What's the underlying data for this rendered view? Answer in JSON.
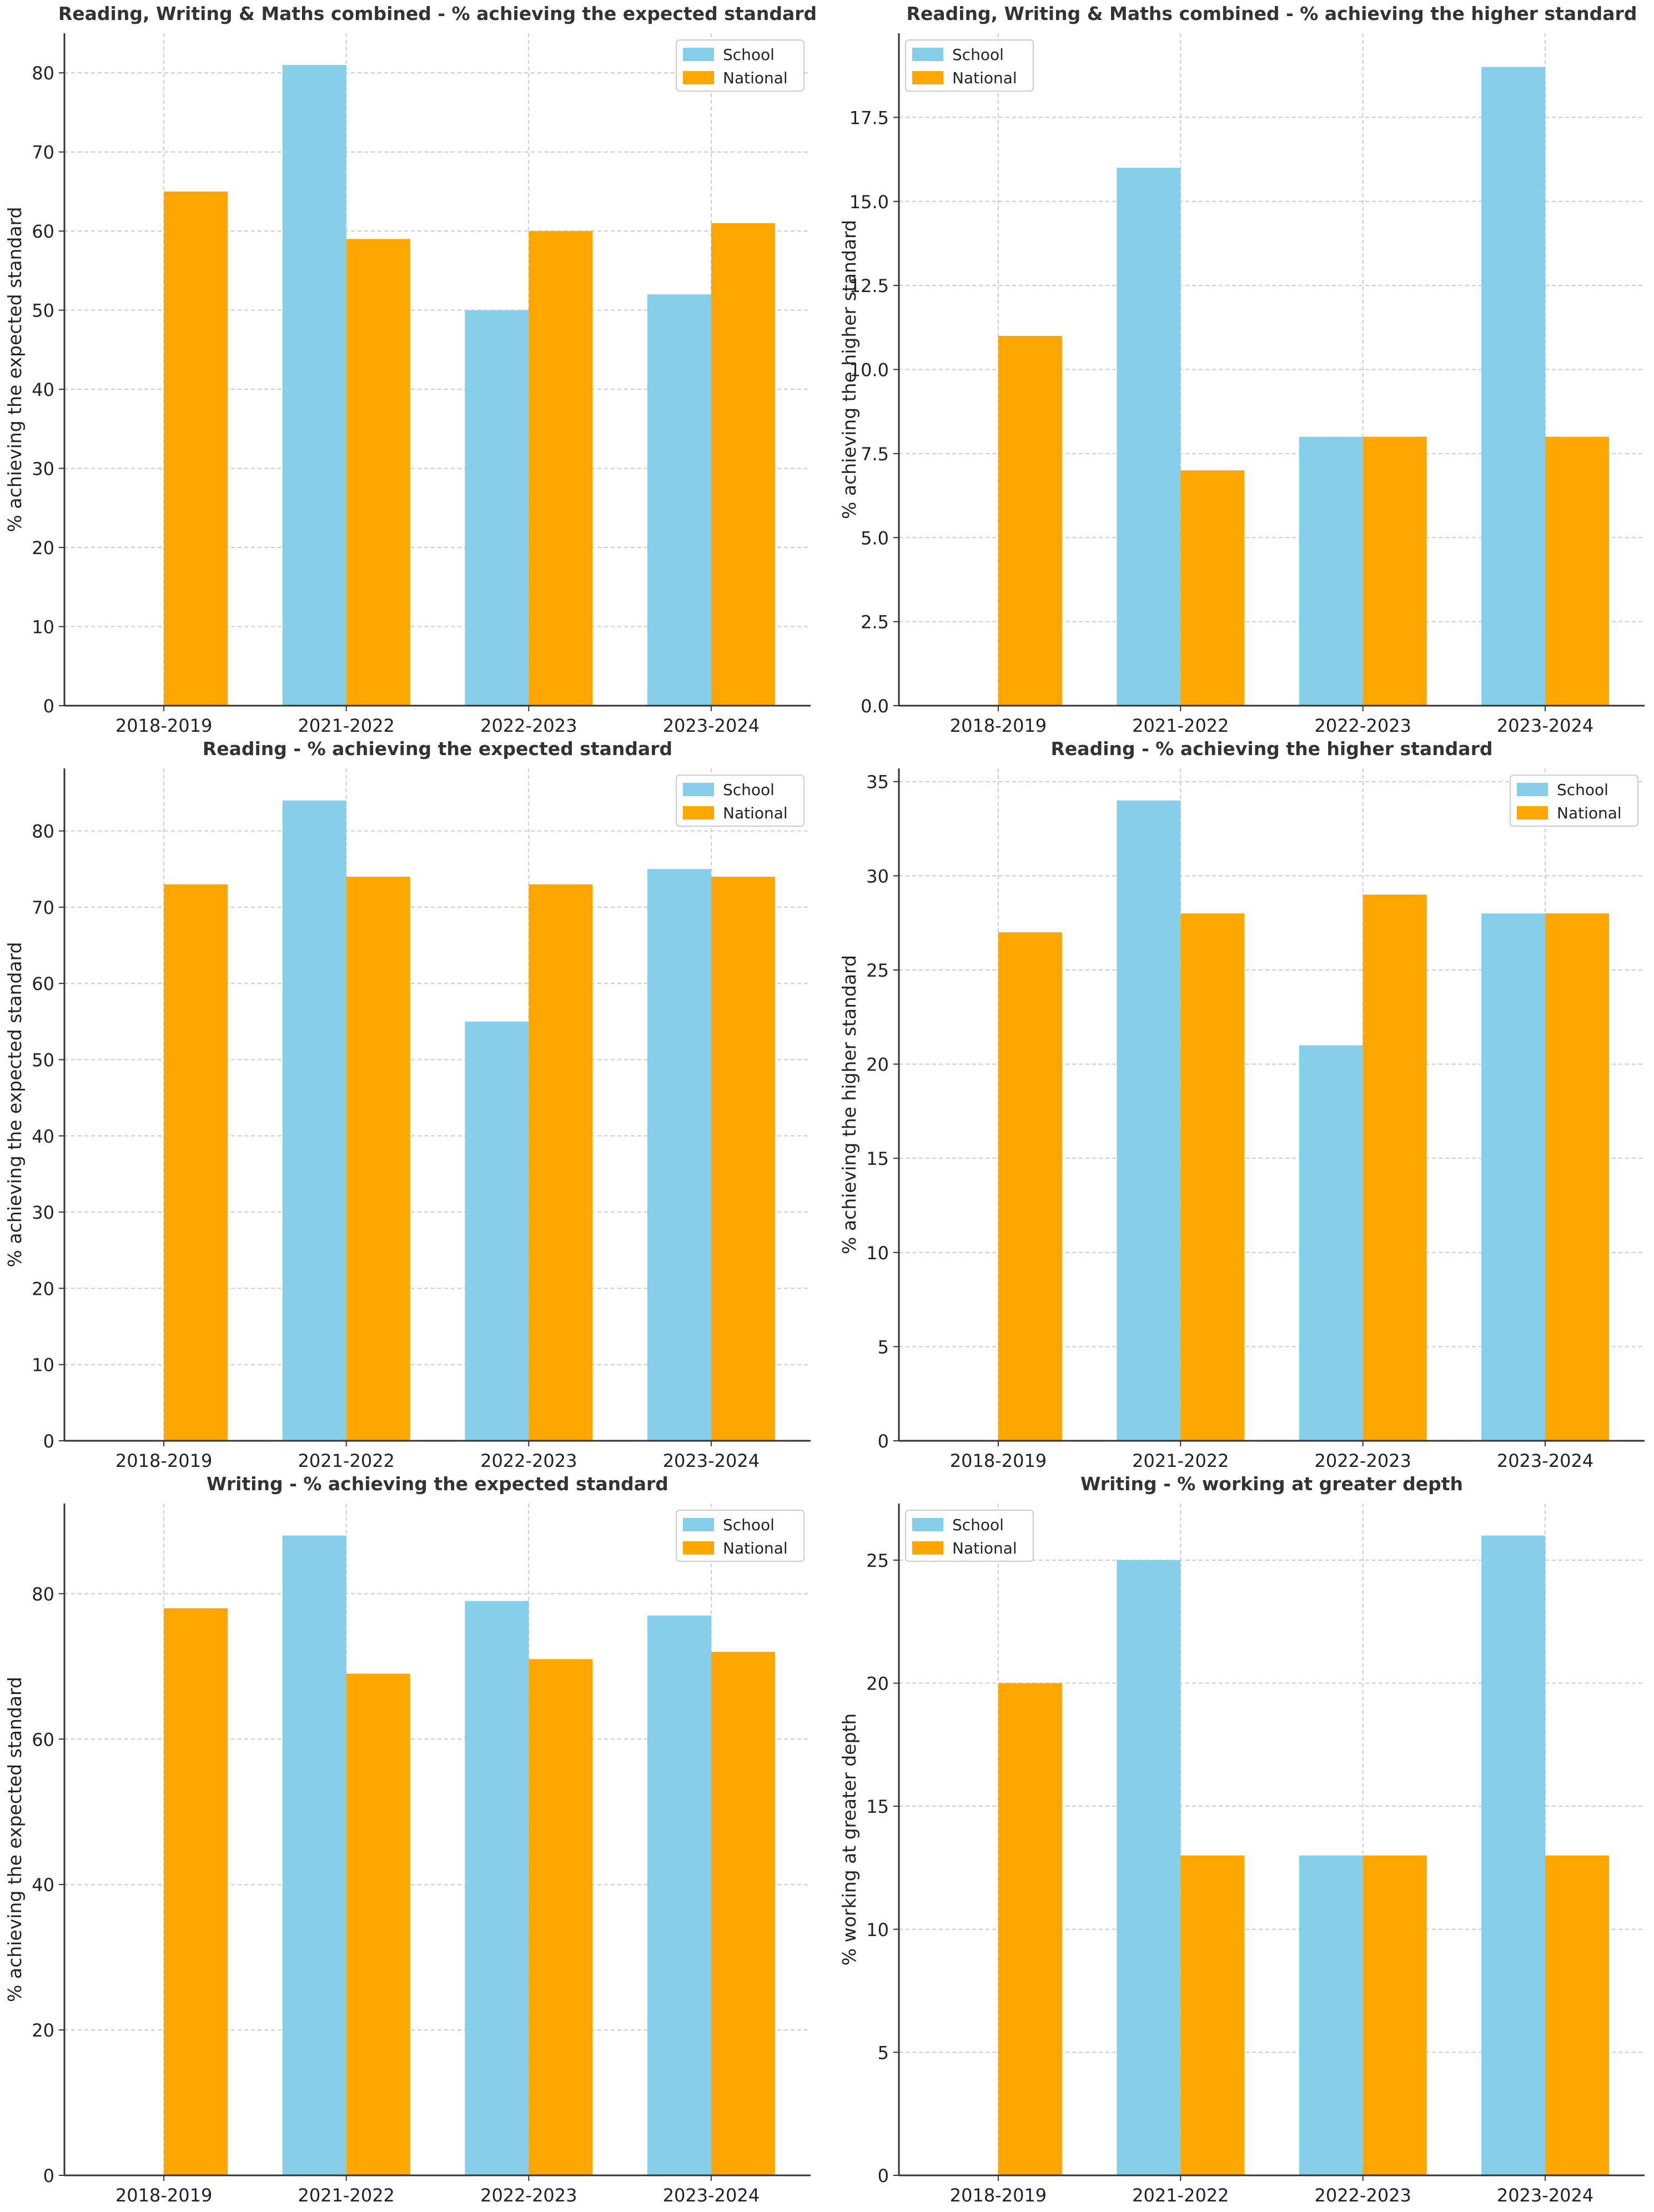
{
  "colors": {
    "school": "#87CEEB",
    "national": "#FFA500"
  },
  "chart_data": [
    {
      "type": "bar",
      "title": "Reading, Writing & Maths combined - % achieving the expected standard",
      "xlabel": "",
      "ylabel": "% achieving the expected standard",
      "categories": [
        "2018-2019",
        "2021-2022",
        "2022-2023",
        "2023-2024"
      ],
      "series": [
        {
          "name": "School",
          "values": [
            null,
            81,
            50,
            52
          ]
        },
        {
          "name": "National",
          "values": [
            65,
            59,
            60,
            61
          ]
        }
      ],
      "ylim": [
        0,
        85
      ],
      "yticks": [
        "0",
        "10",
        "20",
        "30",
        "40",
        "50",
        "60",
        "70",
        "80"
      ],
      "grid": true,
      "legend": "top-right"
    },
    {
      "type": "bar",
      "title": "Reading, Writing & Maths combined - % achieving the higher standard",
      "xlabel": "",
      "ylabel": "% achieving the higher standard",
      "categories": [
        "2018-2019",
        "2021-2022",
        "2022-2023",
        "2023-2024"
      ],
      "series": [
        {
          "name": "School",
          "values": [
            null,
            16,
            8,
            19
          ]
        },
        {
          "name": "National",
          "values": [
            11,
            7,
            8,
            8
          ]
        }
      ],
      "ylim": [
        0,
        20
      ],
      "yticks": [
        "0.0",
        "2.5",
        "5.0",
        "7.5",
        "10.0",
        "12.5",
        "15.0",
        "17.5"
      ],
      "grid": true,
      "legend": "top-left"
    },
    {
      "type": "bar",
      "title": "Reading - % achieving the expected standard",
      "xlabel": "",
      "ylabel": "% achieving the expected standard",
      "categories": [
        "2018-2019",
        "2021-2022",
        "2022-2023",
        "2023-2024"
      ],
      "series": [
        {
          "name": "School",
          "values": [
            null,
            84,
            55,
            75
          ]
        },
        {
          "name": "National",
          "values": [
            73,
            74,
            73,
            74
          ]
        }
      ],
      "ylim": [
        0,
        88.2
      ],
      "yticks": [
        "0",
        "10",
        "20",
        "30",
        "40",
        "50",
        "60",
        "70",
        "80"
      ],
      "grid": true,
      "legend": "top-right"
    },
    {
      "type": "bar",
      "title": "Reading - % achieving the higher standard",
      "xlabel": "",
      "ylabel": "% achieving the higher standard",
      "categories": [
        "2018-2019",
        "2021-2022",
        "2022-2023",
        "2023-2024"
      ],
      "series": [
        {
          "name": "School",
          "values": [
            null,
            34,
            21,
            28
          ]
        },
        {
          "name": "National",
          "values": [
            27,
            28,
            29,
            28
          ]
        }
      ],
      "ylim": [
        0,
        35.7
      ],
      "yticks": [
        "0",
        "5",
        "10",
        "15",
        "20",
        "25",
        "30",
        "35"
      ],
      "grid": true,
      "legend": "top-right"
    },
    {
      "type": "bar",
      "title": "Writing - % achieving the expected standard",
      "xlabel": "",
      "ylabel": "% achieving the expected standard",
      "categories": [
        "2018-2019",
        "2021-2022",
        "2022-2023",
        "2023-2024"
      ],
      "series": [
        {
          "name": "School",
          "values": [
            null,
            88,
            79,
            77
          ]
        },
        {
          "name": "National",
          "values": [
            78,
            69,
            71,
            72
          ]
        }
      ],
      "ylim": [
        0,
        92.4
      ],
      "yticks": [
        "0",
        "20",
        "40",
        "60",
        "80"
      ],
      "grid": true,
      "legend": "top-right"
    },
    {
      "type": "bar",
      "title": "Writing - % working at greater depth",
      "xlabel": "",
      "ylabel": "% working at greater depth",
      "categories": [
        "2018-2019",
        "2021-2022",
        "2022-2023",
        "2023-2024"
      ],
      "series": [
        {
          "name": "School",
          "values": [
            null,
            25,
            13,
            26
          ]
        },
        {
          "name": "National",
          "values": [
            20,
            13,
            13,
            13
          ]
        }
      ],
      "ylim": [
        0,
        27.3
      ],
      "yticks": [
        "0",
        "5",
        "10",
        "15",
        "20",
        "25"
      ],
      "grid": true,
      "legend": "top-left"
    }
  ]
}
